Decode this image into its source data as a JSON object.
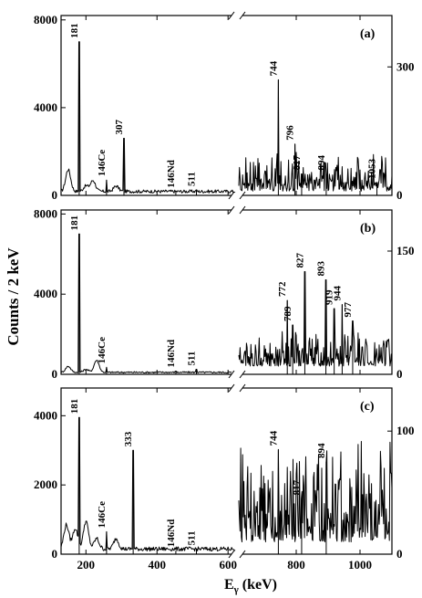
{
  "chart_data": {
    "type": "line",
    "ylabel": "Counts / 2 keV",
    "xlabel": "E",
    "xlabel_sub": "γ",
    "xlabel_unit": " (keV)",
    "x_axis": {
      "broken": true,
      "left_range_keV": [
        130,
        620
      ],
      "right_range_keV": [
        620,
        1100
      ],
      "left_ticks": [
        "200",
        "400",
        "600"
      ],
      "right_ticks": [
        "800",
        "1000"
      ]
    },
    "panels": [
      {
        "panel_label": "(a)",
        "left": {
          "ylim": [
            0,
            8200
          ],
          "y_ticks": [
            "0",
            "4000",
            "8000"
          ],
          "baseline": 180,
          "bumps": [
            [
              150,
              1000
            ],
            [
              200,
              250
            ],
            [
              220,
              500
            ],
            [
              285,
              250
            ]
          ],
          "peaks": [
            {
              "x": 181,
              "y": 7000,
              "label": "181"
            },
            {
              "x": 258,
              "y": 700,
              "label": "146Ce"
            },
            {
              "x": 307,
              "y": 2600,
              "label": "307"
            },
            {
              "x": 453,
              "y": 180,
              "label": "146Nd"
            },
            {
              "x": 511,
              "y": 250,
              "label": "511"
            }
          ]
        },
        "right": {
          "ylim": [
            0,
            420
          ],
          "y_ticks": [
            "0",
            "300"
          ],
          "baseline": 10,
          "noise_amp": 60,
          "peaks": [
            {
              "x": 744,
              "y": 270,
              "label": "744"
            },
            {
              "x": 796,
              "y": 120,
              "label": "796"
            },
            {
              "x": 817,
              "y": 50,
              "label": "817"
            },
            {
              "x": 894,
              "y": 50,
              "label": "894"
            },
            {
              "x": 1053,
              "y": 30,
              "label": "1053"
            }
          ]
        }
      },
      {
        "panel_label": "(b)",
        "left": {
          "ylim": [
            0,
            8200
          ],
          "y_ticks": [
            "0",
            "4000",
            "8000"
          ],
          "baseline": 100,
          "bumps": [
            [
              150,
              300
            ],
            [
              200,
              150
            ],
            [
              230,
              600
            ]
          ],
          "peaks": [
            {
              "x": 181,
              "y": 7000,
              "label": "181"
            },
            {
              "x": 258,
              "y": 350,
              "label": "146Ce"
            },
            {
              "x": 453,
              "y": 160,
              "label": "146Nd"
            },
            {
              "x": 511,
              "y": 250,
              "label": "511"
            }
          ]
        },
        "right": {
          "ylim": [
            0,
            200
          ],
          "y_ticks": [
            "0",
            "150"
          ],
          "baseline": 10,
          "noise_amp": 30,
          "peaks": [
            {
              "x": 772,
              "y": 90,
              "label": "772"
            },
            {
              "x": 789,
              "y": 60,
              "label": "789"
            },
            {
              "x": 827,
              "y": 125,
              "label": "827"
            },
            {
              "x": 893,
              "y": 115,
              "label": "893"
            },
            {
              "x": 919,
              "y": 80,
              "label": "919"
            },
            {
              "x": 944,
              "y": 85,
              "label": "944"
            },
            {
              "x": 977,
              "y": 65,
              "label": "977"
            }
          ]
        }
      },
      {
        "panel_label": "(c)",
        "left": {
          "ylim": [
            0,
            4800
          ],
          "y_ticks": [
            "0",
            "2000",
            "4000"
          ],
          "baseline": 150,
          "bumps": [
            [
              145,
              700
            ],
            [
              170,
              600
            ],
            [
              200,
              800
            ],
            [
              230,
              300
            ],
            [
              285,
              300
            ]
          ],
          "peaks": [
            {
              "x": 181,
              "y": 3950,
              "label": "181"
            },
            {
              "x": 258,
              "y": 650,
              "label": "146Ce"
            },
            {
              "x": 333,
              "y": 3000,
              "label": "333"
            },
            {
              "x": 453,
              "y": 100,
              "label": "146Nd"
            },
            {
              "x": 511,
              "y": 150,
              "label": "511"
            }
          ]
        },
        "right": {
          "ylim": [
            0,
            135
          ],
          "y_ticks": [
            "0",
            "100"
          ],
          "baseline": 10,
          "noise_amp": 55,
          "peaks": [
            {
              "x": 744,
              "y": 85,
              "label": "744"
            },
            {
              "x": 817,
              "y": 45,
              "label": "817"
            },
            {
              "x": 894,
              "y": 75,
              "label": "894"
            }
          ]
        }
      }
    ]
  }
}
